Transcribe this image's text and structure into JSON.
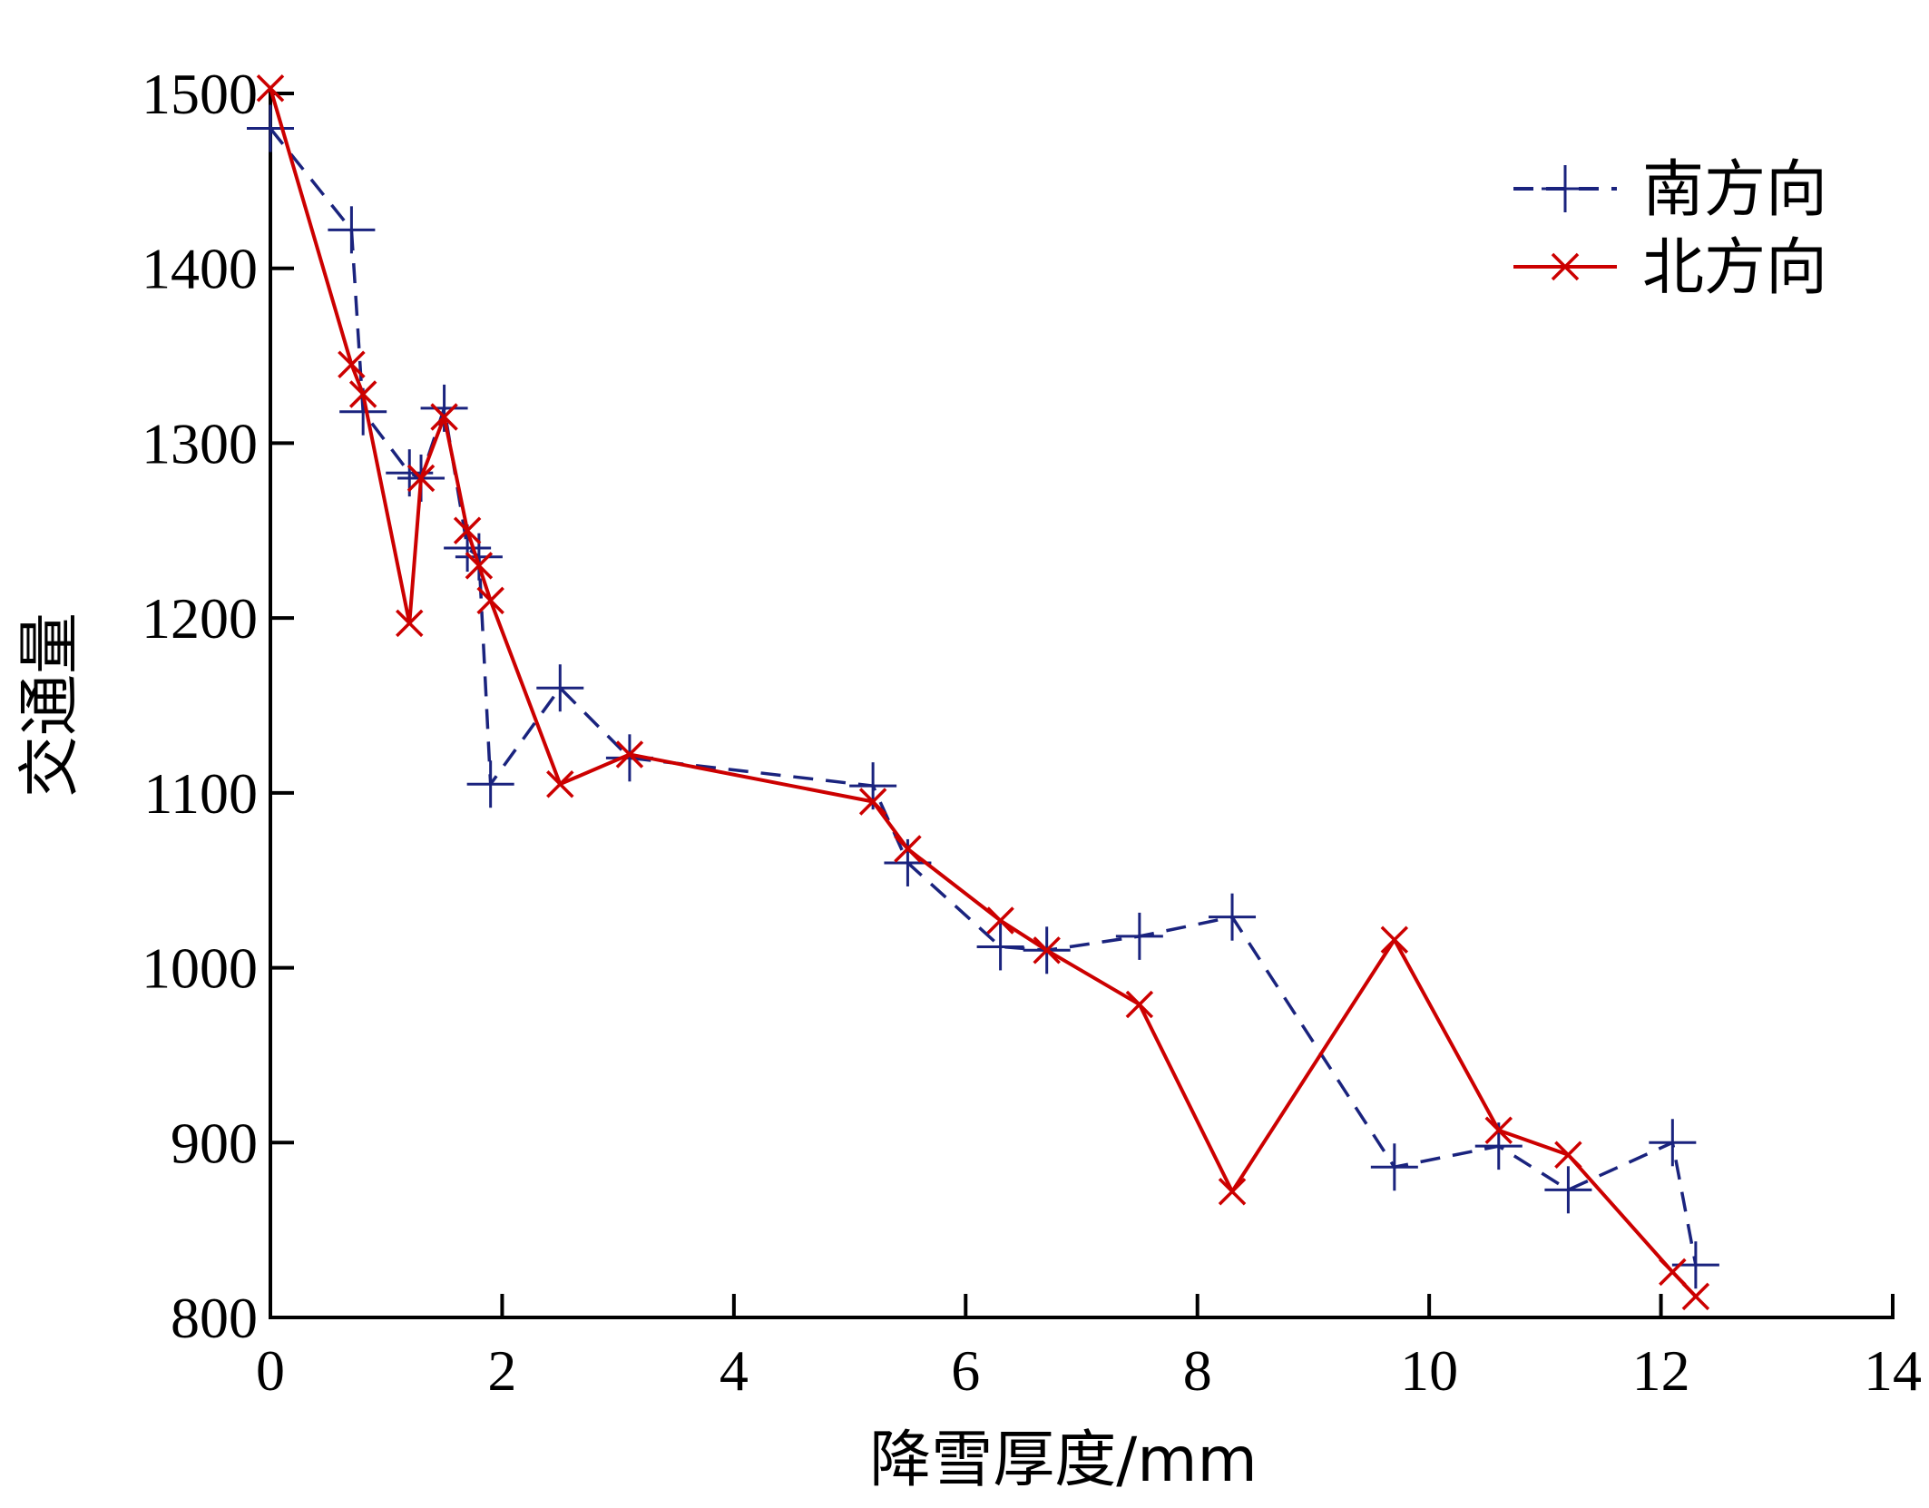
{
  "chart_data": {
    "type": "line",
    "xlabel": "降雪厚度/mm",
    "ylabel": "交通量",
    "xlim": [
      0,
      14
    ],
    "ylim": [
      800,
      1500
    ],
    "xticks": [
      0,
      2,
      4,
      6,
      8,
      10,
      12,
      14
    ],
    "yticks": [
      800,
      900,
      1000,
      1100,
      1200,
      1300,
      1400,
      1500
    ],
    "grid": false,
    "legend_position": "top-right",
    "series": [
      {
        "name": "南方向",
        "color": "#1a237e",
        "line_style": "dashed",
        "marker": "plus",
        "points": [
          [
            0,
            1480
          ],
          [
            0.7,
            1422
          ],
          [
            0.8,
            1318
          ],
          [
            1.2,
            1283
          ],
          [
            1.3,
            1280
          ],
          [
            1.5,
            1320
          ],
          [
            1.7,
            1240
          ],
          [
            1.8,
            1235
          ],
          [
            1.9,
            1105
          ],
          [
            2.5,
            1160
          ],
          [
            3.1,
            1120
          ],
          [
            5.2,
            1104
          ],
          [
            5.5,
            1060
          ],
          [
            6.3,
            1012
          ],
          [
            6.7,
            1010
          ],
          [
            7.5,
            1018
          ],
          [
            8.3,
            1029
          ],
          [
            9.7,
            886
          ],
          [
            10.6,
            898
          ],
          [
            11.2,
            873
          ],
          [
            12.1,
            900
          ],
          [
            12.3,
            830
          ]
        ]
      },
      {
        "name": "北方向",
        "color": "#cc0000",
        "line_style": "solid",
        "marker": "x",
        "points": [
          [
            0,
            1503
          ],
          [
            0.7,
            1345
          ],
          [
            0.8,
            1328
          ],
          [
            1.2,
            1197
          ],
          [
            1.3,
            1280
          ],
          [
            1.5,
            1315
          ],
          [
            1.7,
            1250
          ],
          [
            1.8,
            1230
          ],
          [
            1.9,
            1210
          ],
          [
            2.5,
            1105
          ],
          [
            3.1,
            1122
          ],
          [
            5.2,
            1095
          ],
          [
            5.5,
            1068
          ],
          [
            6.3,
            1027
          ],
          [
            6.7,
            1010
          ],
          [
            7.5,
            979
          ],
          [
            8.3,
            872
          ],
          [
            9.7,
            1016
          ],
          [
            10.6,
            907
          ],
          [
            11.2,
            893
          ],
          [
            12.1,
            826
          ],
          [
            12.3,
            812
          ]
        ]
      }
    ]
  }
}
